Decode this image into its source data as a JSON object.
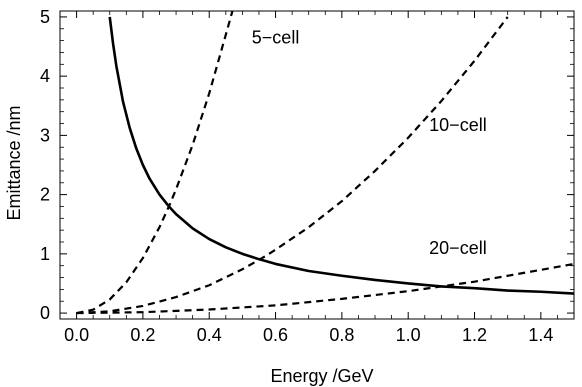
{
  "chart_data": {
    "type": "line",
    "title": "",
    "xlabel": "Energy /GeV",
    "ylabel": "Emittance /nm",
    "xlim": [
      -0.05,
      1.5
    ],
    "ylim": [
      -0.1,
      5.1
    ],
    "xticks": [
      0.0,
      0.2,
      0.4,
      0.6,
      0.8,
      1.0,
      1.2,
      1.4
    ],
    "xtick_labels": [
      "0.0",
      "0.2",
      "0.4",
      "0.6",
      "0.8",
      "1.0",
      "1.2",
      "1.4"
    ],
    "yticks": [
      0,
      1,
      2,
      3,
      4,
      5
    ],
    "ytick_labels": [
      "0",
      "1",
      "2",
      "3",
      "4",
      "5"
    ],
    "grid": false,
    "frame": true,
    "series": [
      {
        "line_style": "solid",
        "color": "#000000",
        "x": [
          0.1,
          0.11,
          0.12,
          0.14,
          0.16,
          0.18,
          0.2,
          0.22,
          0.25,
          0.28,
          0.3,
          0.35,
          0.4,
          0.45,
          0.5,
          0.55,
          0.6,
          0.7,
          0.8,
          0.9,
          1.0,
          1.1,
          1.2,
          1.3,
          1.4,
          1.5
        ],
        "values": [
          5.0,
          4.55,
          4.17,
          3.57,
          3.13,
          2.78,
          2.5,
          2.27,
          2.0,
          1.79,
          1.67,
          1.43,
          1.25,
          1.11,
          1.0,
          0.91,
          0.83,
          0.71,
          0.63,
          0.56,
          0.5,
          0.45,
          0.42,
          0.38,
          0.36,
          0.33
        ]
      },
      {
        "line_style": "dashed",
        "color": "#000000",
        "x": [
          0.0,
          0.05,
          0.1,
          0.15,
          0.2,
          0.25,
          0.28,
          0.3,
          0.35,
          0.4,
          0.45,
          0.47
        ],
        "values": [
          0.0,
          0.058,
          0.23,
          0.52,
          0.93,
          1.45,
          1.82,
          2.09,
          2.84,
          3.71,
          4.7,
          5.1
        ]
      },
      {
        "line_style": "dashed",
        "color": "#000000",
        "x": [
          0.0,
          0.1,
          0.2,
          0.3,
          0.4,
          0.5,
          0.56,
          0.6,
          0.7,
          0.8,
          0.9,
          1.0,
          1.1,
          1.2,
          1.3
        ],
        "values": [
          0.0,
          0.03,
          0.12,
          0.27,
          0.47,
          0.74,
          0.93,
          1.07,
          1.45,
          1.89,
          2.4,
          2.96,
          3.58,
          4.26,
          5.0
        ]
      },
      {
        "line_style": "dashed",
        "color": "#000000",
        "x": [
          0.0,
          0.2,
          0.4,
          0.6,
          0.8,
          1.0,
          1.1,
          1.2,
          1.3,
          1.4,
          1.5
        ],
        "values": [
          0.0,
          0.015,
          0.06,
          0.13,
          0.24,
          0.37,
          0.45,
          0.53,
          0.63,
          0.73,
          0.83
        ]
      }
    ],
    "annotations": [
      {
        "text": "5−cell",
        "x": 0.6,
        "y": 4.55
      },
      {
        "text": "10−cell",
        "x": 1.15,
        "y": 3.07
      },
      {
        "text": "20−cell",
        "x": 1.15,
        "y": 1.0
      }
    ]
  }
}
